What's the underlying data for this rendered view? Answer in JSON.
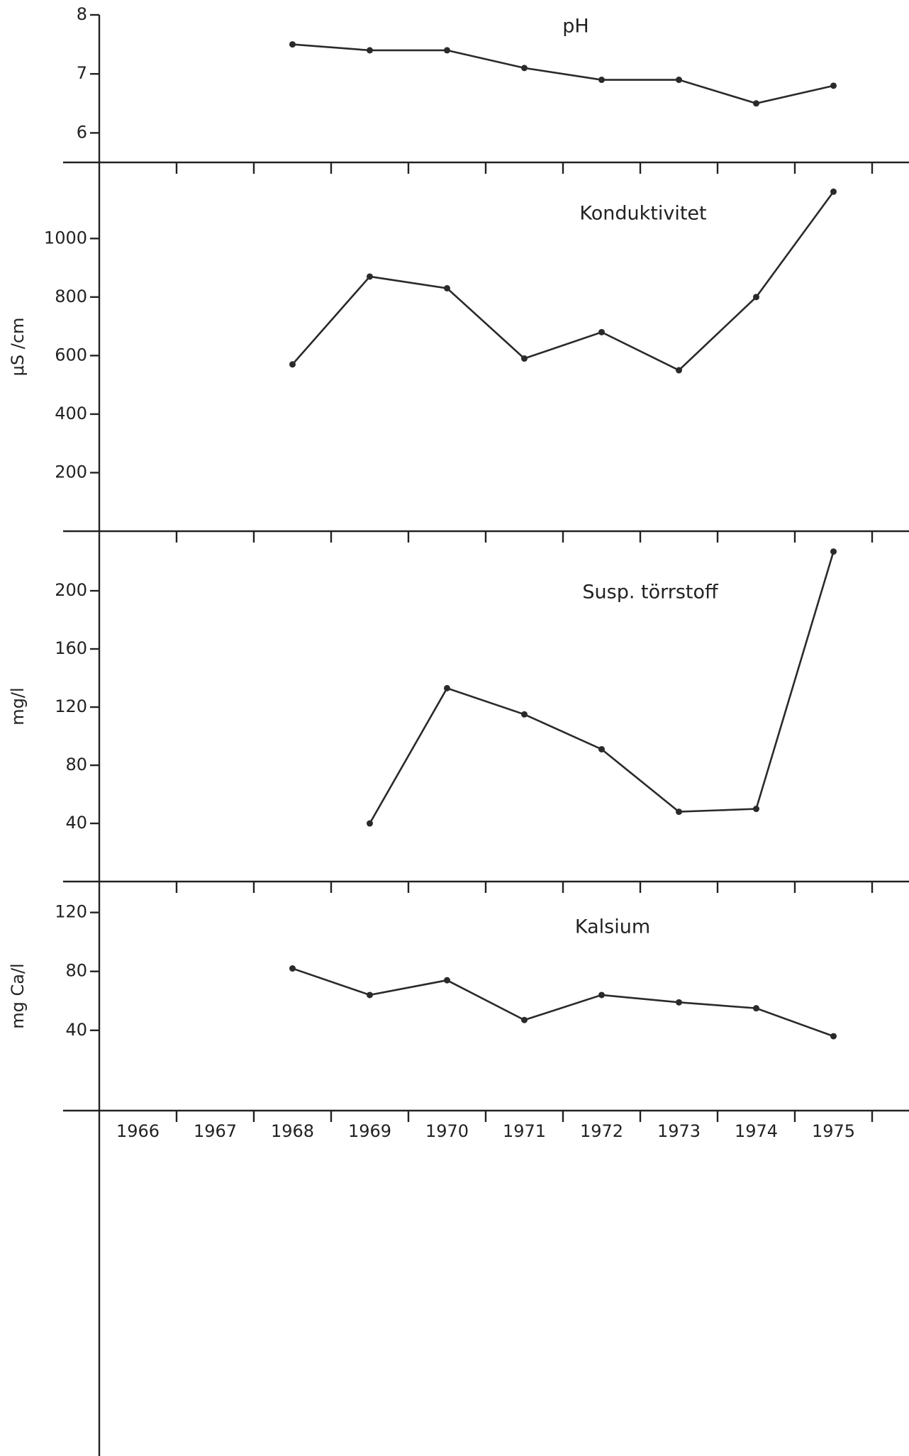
{
  "chart_data": [
    {
      "type": "line",
      "title": "pH",
      "values": [
        null,
        null,
        7.5,
        7.4,
        7.4,
        7.1,
        6.9,
        6.9,
        6.5,
        6.8
      ],
      "ylim": [
        5.5,
        8
      ],
      "yticks": [
        6,
        7,
        8
      ],
      "color": "#2a2a2a"
    },
    {
      "type": "line",
      "title": "Konduktivitet",
      "ylabel": "μS /cm",
      "values": [
        null,
        null,
        570,
        870,
        830,
        590,
        680,
        550,
        800,
        1160
      ],
      "ylim": [
        0,
        1260
      ],
      "yticks": [
        200,
        400,
        600,
        800,
        1000
      ],
      "color": "#2a2a2a"
    },
    {
      "type": "line",
      "title": "Susp. törrstoff",
      "ylabel": "mg/l",
      "values": [
        null,
        null,
        null,
        40,
        133,
        115,
        91,
        48,
        50,
        227
      ],
      "ylim": [
        0,
        241
      ],
      "yticks": [
        40,
        80,
        120,
        160,
        200
      ],
      "color": "#2a2a2a"
    },
    {
      "type": "line",
      "title": "Kalsium",
      "ylabel": "mg Ca/l",
      "categories": [
        "1966",
        "1967",
        "1968",
        "1969",
        "1970",
        "1971",
        "1972",
        "1973",
        "1974",
        "1975"
      ],
      "values": [
        null,
        null,
        82,
        64,
        74,
        47,
        64,
        59,
        55,
        36
      ],
      "ylim": [
        -14.5,
        141
      ],
      "yticks": [
        40,
        80,
        120
      ],
      "color": "#2a2a2a"
    }
  ]
}
